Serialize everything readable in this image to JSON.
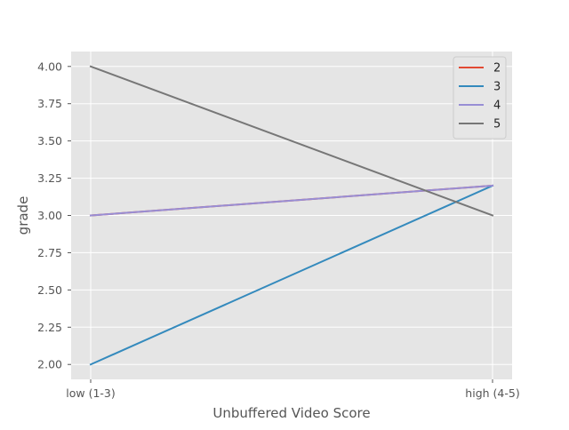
{
  "chart_data": {
    "type": "line",
    "title": "",
    "xlabel": "Unbuffered Video Score",
    "ylabel": "grade",
    "categories": [
      "low (1-3)",
      "high (4-5)"
    ],
    "ylim": [
      1.9,
      4.1
    ],
    "yticks": [
      "2.00",
      "2.25",
      "2.50",
      "2.75",
      "3.00",
      "3.25",
      "3.50",
      "3.75",
      "4.00"
    ],
    "grid": true,
    "legend_position": "top-right",
    "series": [
      {
        "name": "2",
        "values": [
          3.0,
          3.2
        ],
        "color": "#E24A33"
      },
      {
        "name": "3",
        "values": [
          2.0,
          3.2
        ],
        "color": "#348ABD"
      },
      {
        "name": "4",
        "values": [
          3.0,
          3.2
        ],
        "color": "#988ED5"
      },
      {
        "name": "5",
        "values": [
          4.0,
          3.0
        ],
        "color": "#777777"
      }
    ],
    "style": {
      "plot_background": "#E5E5E5",
      "grid_color": "#FFFFFF",
      "legend_background": "#E5E5E5",
      "legend_border": "#CCCCCC"
    }
  }
}
